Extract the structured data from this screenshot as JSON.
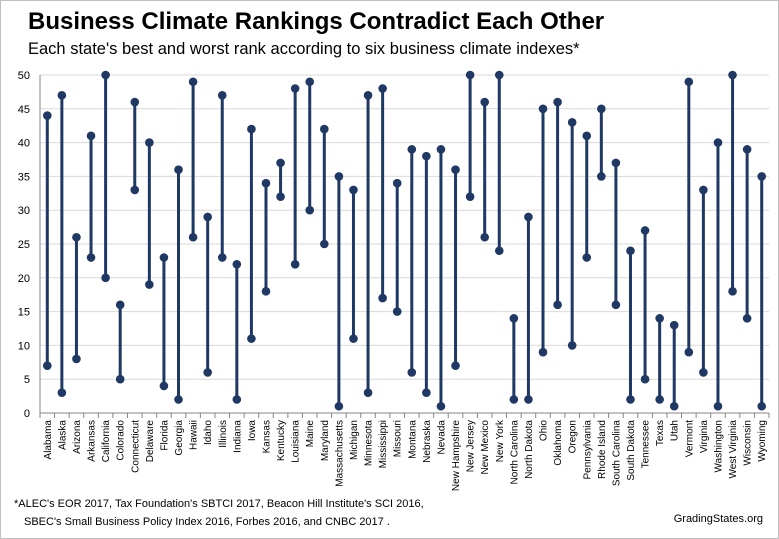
{
  "chart_data": {
    "type": "dumbbell",
    "title": "Business Climate Rankings Contradict Each Other",
    "subtitle": "Each state's best and worst rank according to six business climate indexes*",
    "xlabel": "",
    "ylabel": "",
    "ylim": [
      0,
      50
    ],
    "yticks": [
      0,
      5,
      10,
      15,
      20,
      25,
      30,
      35,
      40,
      45,
      50
    ],
    "grid": true,
    "legend": "none",
    "color": "#1f3864",
    "categories": [
      "Alabama",
      "Alaska",
      "Arizona",
      "Arkansas",
      "California",
      "Colorado",
      "Connecticut",
      "Delaware",
      "Florida",
      "Georgia",
      "Hawaii",
      "Idaho",
      "Illinois",
      "Indiana",
      "Iowa",
      "Kansas",
      "Kentucky",
      "Louisiana",
      "Maine",
      "Maryland",
      "Massachusetts",
      "Michigan",
      "Minnesota",
      "Mississippi",
      "Missouri",
      "Montana",
      "Nebraska",
      "Nevada",
      "New Hampshire",
      "New Jersey",
      "New Mexico",
      "New York",
      "North Carolina",
      "North Dakota",
      "Ohio",
      "Oklahoma",
      "Oregon",
      "Pennsylvania",
      "Rhode Island",
      "South Carolina",
      "South Dakota",
      "Tennessee",
      "Texas",
      "Utah",
      "Vermont",
      "Virginia",
      "Washington",
      "West Virginia",
      "Wisconsin",
      "Wyoming"
    ],
    "series": [
      {
        "name": "Best rank",
        "values": [
          7,
          3,
          8,
          23,
          20,
          5,
          33,
          19,
          4,
          2,
          26,
          6,
          23,
          2,
          11,
          18,
          32,
          22,
          30,
          25,
          1,
          11,
          3,
          17,
          15,
          6,
          3,
          1,
          7,
          32,
          26,
          24,
          2,
          2,
          9,
          16,
          10,
          23,
          35,
          16,
          2,
          5,
          2,
          1,
          9,
          6,
          1,
          18,
          14,
          1
        ]
      },
      {
        "name": "Worst rank",
        "values": [
          44,
          47,
          26,
          41,
          50,
          16,
          46,
          40,
          23,
          36,
          49,
          29,
          47,
          22,
          42,
          34,
          37,
          48,
          49,
          42,
          35,
          33,
          47,
          48,
          34,
          39,
          38,
          39,
          36,
          50,
          46,
          50,
          14,
          29,
          45,
          46,
          43,
          41,
          45,
          37,
          24,
          27,
          14,
          13,
          49,
          33,
          40,
          50,
          39,
          35
        ]
      }
    ]
  },
  "footnote": {
    "line1": "*ALEC's  EOR 2017, Tax Foundation's SBTCI 2017, Beacon Hill Institute's SCI 2016,",
    "line2": "SBEC's Small Business Policy Index 2016, Forbes 2016, and CNBC  2017 ."
  },
  "credit": "GradingStates.org"
}
